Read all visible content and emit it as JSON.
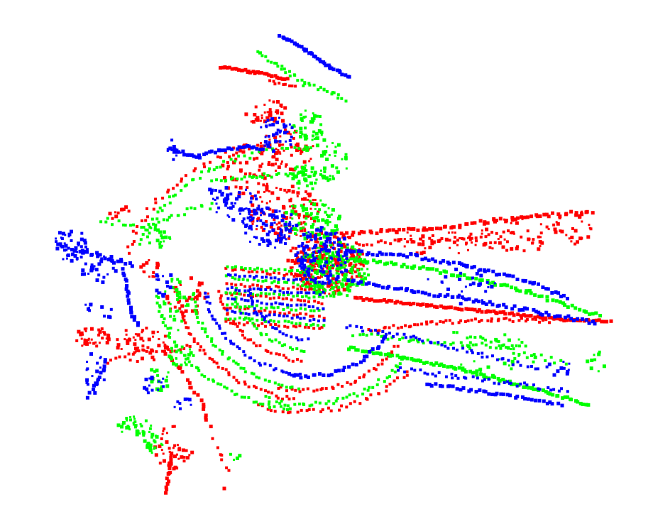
{
  "image": {
    "kind": "point-cloud-render",
    "background": "#ffffff",
    "channels": [
      {
        "name": "red",
        "color": "#ff0000"
      },
      {
        "name": "green",
        "color": "#00ff00"
      },
      {
        "name": "blue",
        "color": "#0000ff"
      }
    ]
  }
}
